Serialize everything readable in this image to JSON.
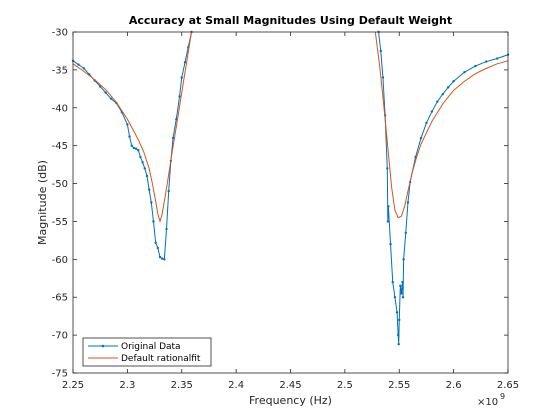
{
  "chart_data": {
    "type": "line",
    "title": "Accuracy at Small Magnitudes Using Default Weight",
    "xlabel": "Frequency (Hz)",
    "ylabel": "Magnitude (dB)",
    "x_exponent_label": "×10",
    "x_exponent_power": "9",
    "xlim": [
      2.25,
      2.65
    ],
    "ylim": [
      -75,
      -30
    ],
    "xticks": [
      "2.25",
      "2.3",
      "2.35",
      "2.4",
      "2.45",
      "2.5",
      "2.55",
      "2.6",
      "2.65"
    ],
    "yticks": [
      "-30",
      "-35",
      "-40",
      "-45",
      "-50",
      "-55",
      "-60",
      "-65",
      "-70",
      "-75"
    ],
    "grid": false,
    "legend_position": "bottom-left",
    "colors": {
      "original": "#0072BD",
      "fit": "#D95319",
      "axis": "#262626"
    },
    "series": [
      {
        "name": "Original Data",
        "segments": [
          [
            [
              2.25,
              -33.8
            ],
            [
              2.255,
              -34.3
            ],
            [
              2.26,
              -34.8
            ],
            [
              2.265,
              -35.6
            ],
            [
              2.27,
              -36.4
            ],
            [
              2.275,
              -37.2
            ],
            [
              2.28,
              -38.0
            ],
            [
              2.285,
              -38.8
            ],
            [
              2.29,
              -39.4
            ],
            [
              2.295,
              -40.6
            ],
            [
              2.3,
              -42.2
            ],
            [
              2.302,
              -43.8
            ],
            [
              2.304,
              -45.0
            ],
            [
              2.306,
              -45.3
            ],
            [
              2.308,
              -45.4
            ],
            [
              2.31,
              -45.6
            ],
            [
              2.312,
              -46.5
            ],
            [
              2.314,
              -47.2
            ],
            [
              2.316,
              -48.0
            ],
            [
              2.318,
              -49.0
            ],
            [
              2.32,
              -50.8
            ],
            [
              2.322,
              -52.5
            ],
            [
              2.324,
              -55.0
            ],
            [
              2.326,
              -57.8
            ],
            [
              2.328,
              -58.5
            ],
            [
              2.33,
              -59.7
            ],
            [
              2.332,
              -59.9
            ],
            [
              2.334,
              -60.0
            ],
            [
              2.336,
              -56.0
            ],
            [
              2.338,
              -51.0
            ],
            [
              2.34,
              -47.0
            ],
            [
              2.342,
              -44.0
            ],
            [
              2.345,
              -41.5
            ],
            [
              2.348,
              -38.5
            ],
            [
              2.35,
              -36.0
            ],
            [
              2.353,
              -34.0
            ],
            [
              2.356,
              -32.0
            ],
            [
              2.359,
              -30.0
            ]
          ],
          [
            [
              2.531,
              -30.0
            ],
            [
              2.533,
              -32.5
            ],
            [
              2.535,
              -36.0
            ],
            [
              2.537,
              -41.0
            ],
            [
              2.539,
              -48.0
            ],
            [
              2.5395,
              -55.0
            ],
            [
              2.54,
              -53.0
            ],
            [
              2.542,
              -58.0
            ],
            [
              2.544,
              -63.0
            ],
            [
              2.546,
              -65.0
            ],
            [
              2.548,
              -67.0
            ],
            [
              2.549,
              -70.0
            ],
            [
              2.5495,
              -71.2
            ],
            [
              2.55,
              -68.0
            ],
            [
              2.551,
              -63.5
            ],
            [
              2.552,
              -64.5
            ],
            [
              2.553,
              -63.0
            ],
            [
              2.5535,
              -65.0
            ],
            [
              2.554,
              -60.0
            ],
            [
              2.556,
              -56.5
            ],
            [
              2.558,
              -52.5
            ],
            [
              2.56,
              -49.8
            ],
            [
              2.565,
              -46.5
            ],
            [
              2.57,
              -44.0
            ],
            [
              2.575,
              -42.0
            ],
            [
              2.58,
              -40.5
            ],
            [
              2.585,
              -39.2
            ],
            [
              2.59,
              -38.2
            ],
            [
              2.595,
              -37.3
            ],
            [
              2.6,
              -36.5
            ],
            [
              2.61,
              -35.3
            ],
            [
              2.62,
              -34.5
            ],
            [
              2.63,
              -33.9
            ],
            [
              2.64,
              -33.5
            ],
            [
              2.65,
              -33.0
            ]
          ]
        ]
      },
      {
        "name": "Default rationalfit",
        "segments": [
          [
            [
              2.25,
              -34.2
            ],
            [
              2.26,
              -35.2
            ],
            [
              2.27,
              -36.3
            ],
            [
              2.28,
              -37.6
            ],
            [
              2.29,
              -39.3
            ],
            [
              2.3,
              -41.5
            ],
            [
              2.31,
              -44.2
            ],
            [
              2.315,
              -45.8
            ],
            [
              2.32,
              -48.0
            ],
            [
              2.323,
              -50.0
            ],
            [
              2.326,
              -52.3
            ],
            [
              2.328,
              -54.0
            ],
            [
              2.33,
              -55.0
            ],
            [
              2.332,
              -54.0
            ],
            [
              2.335,
              -51.5
            ],
            [
              2.338,
              -48.8
            ],
            [
              2.341,
              -46.0
            ],
            [
              2.345,
              -42.5
            ],
            [
              2.35,
              -38.0
            ],
            [
              2.355,
              -33.5
            ],
            [
              2.359,
              -30.0
            ]
          ],
          [
            [
              2.528,
              -30.0
            ],
            [
              2.532,
              -34.5
            ],
            [
              2.536,
              -40.0
            ],
            [
              2.54,
              -46.0
            ],
            [
              2.543,
              -50.5
            ],
            [
              2.546,
              -53.5
            ],
            [
              2.549,
              -54.5
            ],
            [
              2.552,
              -54.3
            ],
            [
              2.555,
              -53.0
            ],
            [
              2.558,
              -51.0
            ],
            [
              2.562,
              -48.5
            ],
            [
              2.566,
              -46.5
            ],
            [
              2.57,
              -44.8
            ],
            [
              2.58,
              -41.8
            ],
            [
              2.59,
              -39.5
            ],
            [
              2.6,
              -37.7
            ],
            [
              2.61,
              -36.5
            ],
            [
              2.62,
              -35.5
            ],
            [
              2.63,
              -34.8
            ],
            [
              2.64,
              -34.2
            ],
            [
              2.65,
              -33.8
            ]
          ]
        ]
      }
    ]
  }
}
